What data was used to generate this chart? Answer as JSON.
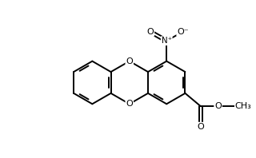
{
  "bg_color": "#ffffff",
  "line_color": "#000000",
  "lw": 1.4,
  "fs": 8.0,
  "figsize": [
    3.2,
    1.98
  ],
  "dpi": 100,
  "xlim": [
    -1.7,
    1.65
  ],
  "ylim": [
    -1.05,
    1.15
  ]
}
